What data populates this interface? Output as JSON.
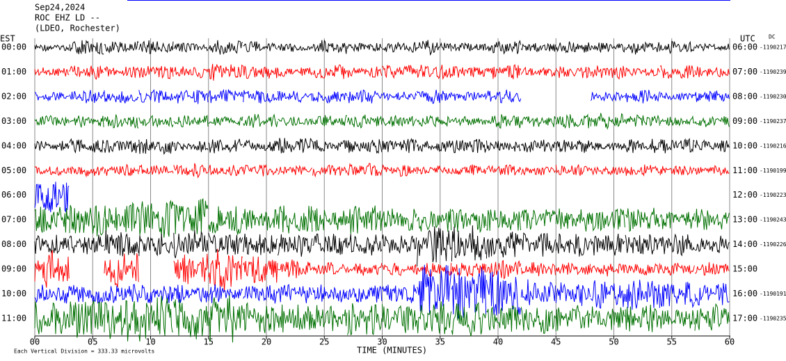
{
  "chart_data": {
    "type": "helicorder",
    "title_lines": [
      "Sep24,2024",
      "ROC EHZ LD --",
      "(LDEO, Rochester)"
    ],
    "left_axis_label": "EST",
    "right_axis_label": "UTC",
    "right_corner_label": "DC",
    "x_label": "TIME (MINUTES)",
    "scale_note": "Each Vertical Division = 333.33 microvolts",
    "xlim": [
      0,
      60
    ],
    "xticks": [
      {
        "value": 0,
        "label": "00"
      },
      {
        "value": 5,
        "label": "05"
      },
      10,
      15,
      20,
      25,
      30,
      35,
      40,
      45,
      50,
      55,
      60
    ],
    "grid": true,
    "segment_minutes": 3,
    "rows": [
      {
        "start": "00:00",
        "utc": "06:00",
        "offset": "-1190217",
        "color": "#000000",
        "amplitude": [
          0.15,
          0.3,
          0.25,
          0.3,
          0.2,
          0.3,
          0.25,
          0.2,
          0.3,
          0.2,
          0.25,
          0.3,
          0.2,
          0.3,
          0.2,
          0.25,
          0.2,
          0.3,
          0.25,
          0.15
        ]
      },
      {
        "start": "01:00",
        "utc": "07:00",
        "offset": "-1190239",
        "color": "#ff0000",
        "amplitude": [
          0.2,
          0.3,
          0.25,
          0.3,
          0.25,
          0.35,
          0.3,
          0.2,
          0.3,
          0.25,
          0.3,
          0.3,
          0.25,
          0.3,
          0.2,
          0.25,
          0.3,
          0.2,
          0.3,
          0.25
        ]
      },
      {
        "start": "02:00",
        "utc": "08:00",
        "offset": "-1190230",
        "color": "#0000ff",
        "amplitude": [
          0.2,
          0.3,
          0.3,
          0.3,
          0.35,
          0.3,
          0.3,
          0.25,
          0.3,
          0.3,
          0.2,
          0.3,
          0.2,
          0.3,
          null,
          null,
          0.2,
          0.3,
          0.2,
          0.25
        ]
      },
      {
        "start": "03:00",
        "utc": "09:00",
        "offset": "-1190237",
        "color": "#007000",
        "amplitude": [
          0.25,
          0.25,
          0.3,
          0.25,
          0.25,
          0.2,
          0.3,
          0.2,
          0.25,
          0.3,
          0.25,
          0.25,
          0.2,
          0.3,
          0.25,
          0.3,
          0.35,
          0.3,
          0.2,
          0.25
        ]
      },
      {
        "start": "04:00",
        "utc": "10:00",
        "offset": "-1190216",
        "color": "#000000",
        "amplitude": [
          0.2,
          0.3,
          0.3,
          0.35,
          0.25,
          0.3,
          0.25,
          0.35,
          0.25,
          0.3,
          0.3,
          0.25,
          0.3,
          0.25,
          0.3,
          0.3,
          0.2,
          0.3,
          0.3,
          0.25
        ]
      },
      {
        "start": "05:00",
        "utc": "11:00",
        "offset": "-1190199",
        "color": "#ff0000",
        "amplitude": [
          0.2,
          0.25,
          0.25,
          0.25,
          0.3,
          0.25,
          0.25,
          0.2,
          0.25,
          0.3,
          0.25,
          0.2,
          0.25,
          0.25,
          0.2,
          0.25,
          0.2,
          0.25,
          0.2,
          0.2
        ]
      },
      {
        "start": "06:00",
        "utc": "12:00",
        "offset": "-1190223",
        "color": "#0000ff",
        "amplitude": [
          0.8,
          null,
          null,
          null,
          null,
          null,
          null,
          null,
          null,
          null,
          null,
          null,
          null,
          null,
          null,
          null,
          null,
          null,
          null,
          null
        ]
      },
      {
        "start": "07:00",
        "utc": "13:00",
        "offset": "-1190243",
        "color": "#007000",
        "amplitude": [
          0.6,
          0.7,
          0.7,
          0.8,
          0.9,
          0.6,
          0.5,
          0.6,
          0.5,
          0.6,
          0.5,
          0.5,
          0.5,
          0.5,
          0.5,
          0.5,
          0.5,
          0.5,
          0.4,
          0.5
        ]
      },
      {
        "start": "08:00",
        "utc": "14:00",
        "offset": "-1190226",
        "color": "#000000",
        "amplitude": [
          0.4,
          0.5,
          0.6,
          0.5,
          0.6,
          0.5,
          0.5,
          0.5,
          0.5,
          0.5,
          0.5,
          0.9,
          0.8,
          0.6,
          0.5,
          0.5,
          0.5,
          0.5,
          0.5,
          0.4
        ]
      },
      {
        "start": "09:00",
        "utc": "15:00",
        "color": "#ff0000",
        "amplitude": [
          0.8,
          null,
          0.8,
          null,
          0.7,
          1.0,
          0.6,
          0.4,
          0.3,
          0.3,
          0.3,
          0.3,
          0.4,
          0.4,
          0.3,
          0.3,
          0.3,
          0.3,
          0.3,
          0.3
        ]
      },
      {
        "start": "10:00",
        "utc": "16:00",
        "offset": "-1190191",
        "color": "#0000ff",
        "amplitude": [
          0.4,
          0.4,
          0.4,
          0.4,
          0.4,
          0.4,
          0.4,
          0.4,
          0.4,
          0.4,
          0.4,
          1.2,
          1.1,
          1.0,
          0.6,
          0.6,
          0.6,
          0.7,
          0.6,
          0.5
        ]
      },
      {
        "start": "11:00",
        "utc": "17:00",
        "offset": "-1190235",
        "color": "#007000",
        "amplitude": [
          0.7,
          1.0,
          1.0,
          1.0,
          0.9,
          1.0,
          0.7,
          0.7,
          0.6,
          0.7,
          0.6,
          0.7,
          0.8,
          0.6,
          0.6,
          0.6,
          0.6,
          0.6,
          0.5,
          0.6
        ]
      }
    ]
  }
}
